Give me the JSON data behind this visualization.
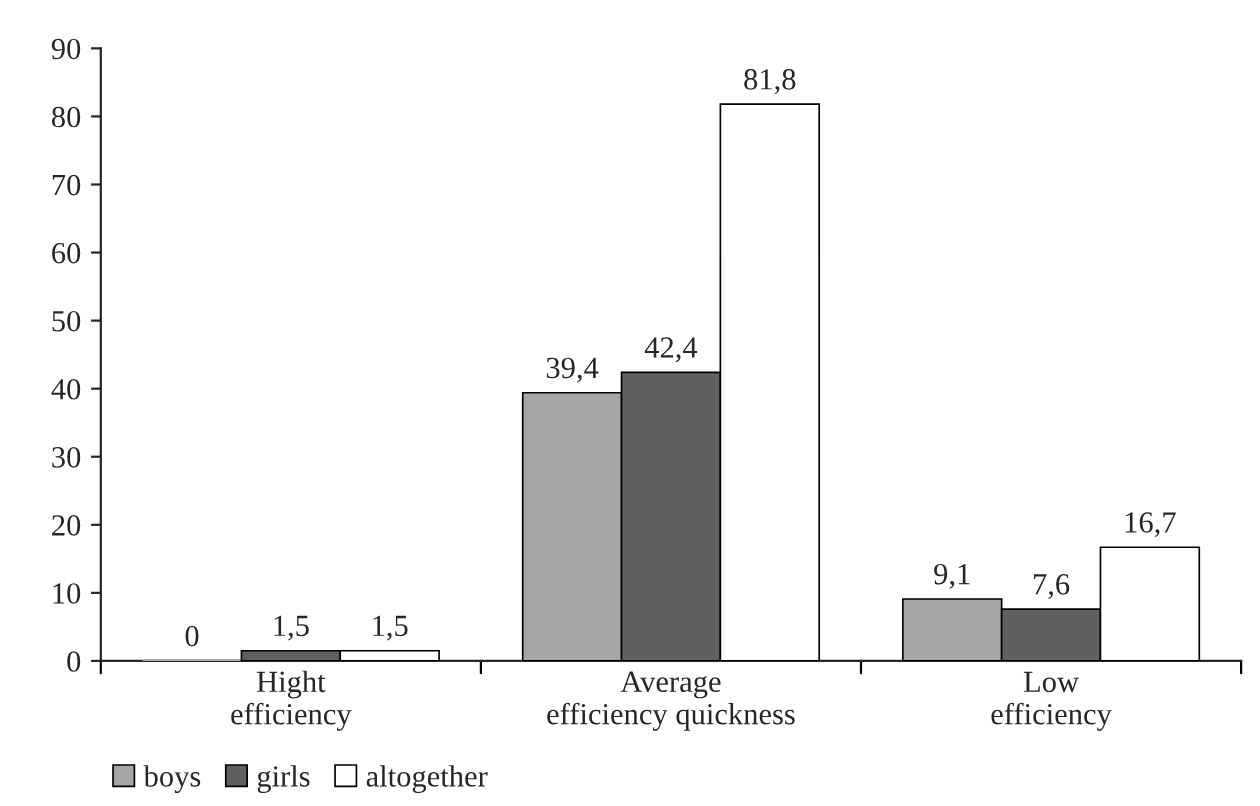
{
  "chart_data": {
    "type": "bar",
    "categories": [
      "Hight\nefficiency",
      "Average\nefficiency quickness",
      "Low\nefficiency"
    ],
    "series": [
      {
        "name": "boys",
        "color": "#a6a6a6",
        "values": [
          0,
          39.4,
          9.1
        ],
        "value_labels": [
          "0",
          "39,4",
          "9,1"
        ]
      },
      {
        "name": "girls",
        "color": "#606060",
        "values": [
          1.5,
          42.4,
          7.6
        ],
        "value_labels": [
          "1,5",
          "42,4",
          "7,6"
        ]
      },
      {
        "name": "altogether",
        "color": "#ffffff",
        "values": [
          1.5,
          81.8,
          16.7
        ],
        "value_labels": [
          "1,5",
          "81,8",
          "16,7"
        ]
      }
    ],
    "ylim": [
      0,
      90
    ],
    "yticks": [
      0,
      10,
      20,
      30,
      40,
      50,
      60,
      70,
      80,
      90
    ],
    "grid": false,
    "legend": "bottom left"
  }
}
